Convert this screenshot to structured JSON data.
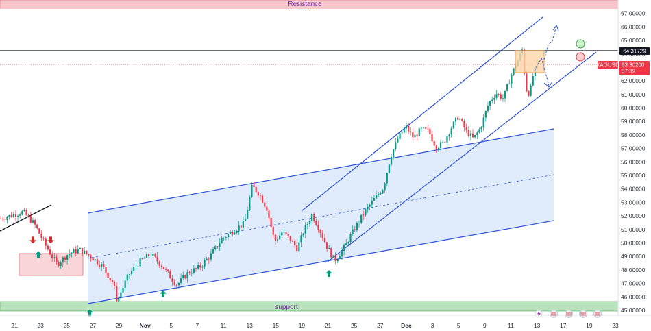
{
  "chart_data": {
    "type": "candlestick",
    "symbol": "XAGUSD",
    "ylim": [
      45,
      67.5
    ],
    "y_ticks": [
      "45.00000",
      "46.00000",
      "47.00000",
      "48.00000",
      "49.00000",
      "50.00000",
      "51.00000",
      "52.00000",
      "53.00000",
      "54.00000",
      "55.00000",
      "56.00000",
      "57.00000",
      "58.00000",
      "59.00000",
      "60.00000",
      "61.00000",
      "62.00000",
      "63.00000",
      "64.00000",
      "65.00000",
      "66.00000",
      "67.00000"
    ],
    "x_ticks": [
      "21",
      "23",
      "25",
      "27",
      "29",
      "Nov",
      "5",
      "7",
      "11",
      "13",
      "15",
      "19",
      "21",
      "25",
      "27",
      "Dec",
      "3",
      "5",
      "9",
      "11",
      "13",
      "17",
      "19",
      "23"
    ],
    "bold_x_ticks": [
      "Nov",
      "Dec"
    ],
    "price_path": [
      [
        0,
        51.8
      ],
      [
        6,
        52.3
      ],
      [
        9,
        51.4
      ],
      [
        12,
        49.8
      ],
      [
        15,
        48.4
      ],
      [
        18,
        49.2
      ],
      [
        21,
        49.5
      ],
      [
        24,
        49.0
      ],
      [
        27,
        48.3
      ],
      [
        30,
        47.0
      ],
      [
        31,
        45.7
      ],
      [
        34,
        47.6
      ],
      [
        37,
        48.6
      ],
      [
        40,
        49.2
      ],
      [
        43,
        48.3
      ],
      [
        46,
        47.2
      ],
      [
        47,
        46.9
      ],
      [
        50,
        47.8
      ],
      [
        53,
        48.2
      ],
      [
        56,
        49.1
      ],
      [
        59,
        50.3
      ],
      [
        62,
        50.9
      ],
      [
        65,
        51.5
      ],
      [
        67,
        54.2
      ],
      [
        69,
        53.6
      ],
      [
        71,
        52.5
      ],
      [
        73,
        50.1
      ],
      [
        75,
        50.8
      ],
      [
        77,
        50.3
      ],
      [
        79,
        49.6
      ],
      [
        81,
        51.0
      ],
      [
        83,
        52.1
      ],
      [
        85,
        51.0
      ],
      [
        87,
        49.7
      ],
      [
        89,
        48.7
      ],
      [
        91,
        49.4
      ],
      [
        94,
        50.9
      ],
      [
        97,
        52.3
      ],
      [
        100,
        53.4
      ],
      [
        102,
        54.1
      ],
      [
        104,
        56.5
      ],
      [
        106,
        57.8
      ],
      [
        108,
        58.6
      ],
      [
        110,
        57.8
      ],
      [
        112,
        58.4
      ],
      [
        114,
        58.3
      ],
      [
        116,
        57.1
      ],
      [
        118,
        57.4
      ],
      [
        120,
        58.5
      ],
      [
        122,
        59.4
      ],
      [
        124,
        58.3
      ],
      [
        126,
        57.7
      ],
      [
        128,
        58.6
      ],
      [
        130,
        60.3
      ],
      [
        132,
        61.1
      ],
      [
        134,
        60.7
      ],
      [
        136,
        62.4
      ],
      [
        138,
        63.6
      ],
      [
        139,
        64.3
      ],
      [
        140,
        61.4
      ],
      [
        141,
        61.0
      ],
      [
        142,
        62.6
      ],
      [
        143,
        63.3
      ]
    ],
    "price_value_range": [
      45.9,
      64.5
    ],
    "current_price": "63.30200",
    "countdown": "57:39",
    "horizontal_level": "64.31729",
    "zones": [
      {
        "label": "Resistance",
        "range": [
          67.4,
          68.5
        ]
      },
      {
        "label": "support",
        "range": [
          45.0,
          45.75
        ]
      }
    ],
    "annotations": {
      "up_arrows_at": [
        50.0,
        47.1,
        45.7,
        48.6
      ],
      "down_arrows_at": [
        49.7,
        49.7
      ],
      "projection": "breakout up or pullback down from box 62.5-64.4"
    },
    "colors": {
      "up": "#089981",
      "down": "#f23645",
      "channel": "#2b52d6",
      "channel_fill": "#dbe8fb",
      "resistance_fill": "#f7c6cb",
      "support_fill": "#b9e3bc",
      "price_tag": "#f23645",
      "level_tag": "#131722"
    }
  }
}
